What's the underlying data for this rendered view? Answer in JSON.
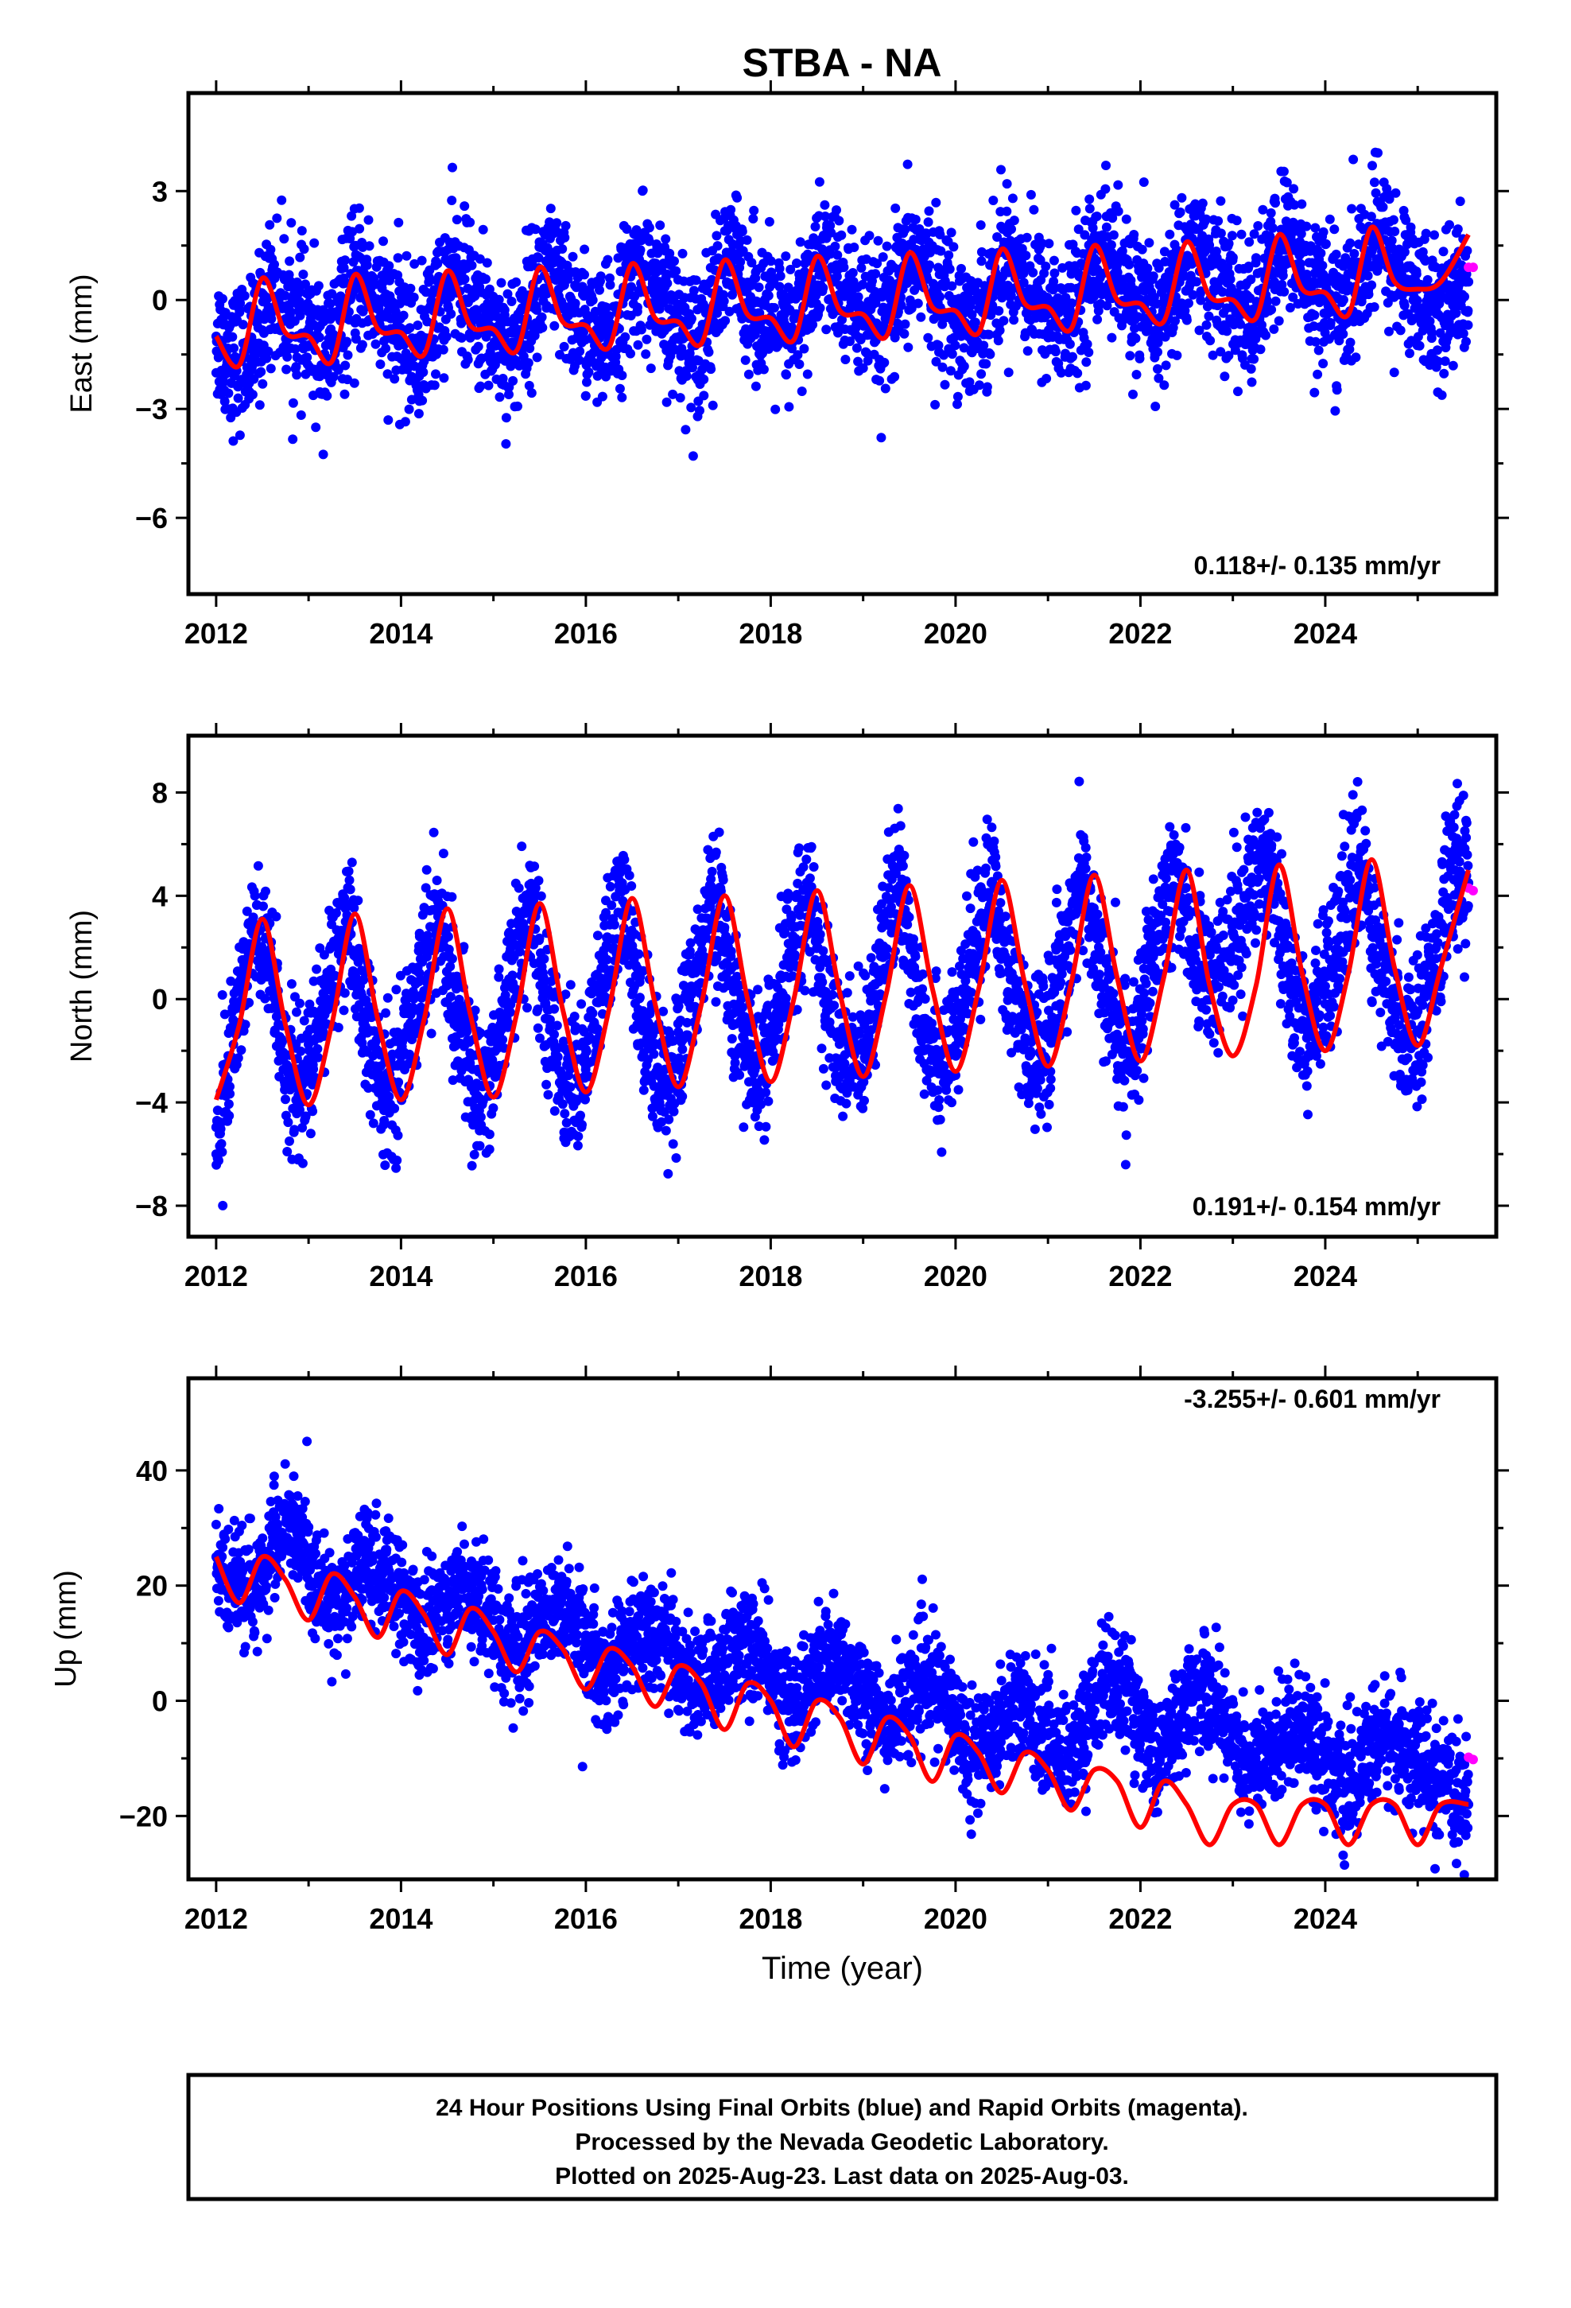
{
  "title": "STBA - NA",
  "footer": {
    "line1": "24 Hour Positions Using Final Orbits (blue) and Rapid Orbits (magenta).",
    "line2": "Processed by the Nevada Geodetic Laboratory.",
    "line3": "Plotted on 2025-Aug-23. Last data on 2025-Aug-03."
  },
  "colors": {
    "final_orbits": "#0000ff",
    "rapid_orbits": "#ff00ff",
    "model": "#ff0000"
  },
  "chart_data": [
    {
      "type": "scatter",
      "ylabel": "East (mm)",
      "xlabel": "",
      "rate_text": "0.118+/- 0.135 mm/yr",
      "xlim": [
        2011.7,
        2025.85
      ],
      "ylim": [
        -8.1,
        5.7
      ],
      "xticks": [
        2012,
        2014,
        2016,
        2018,
        2020,
        2022,
        2024
      ],
      "xtick_labels": [
        "2012",
        "2014",
        "2016",
        "2018",
        "2020",
        "2022",
        "2024"
      ],
      "yticks": [
        -6,
        -3,
        0,
        3
      ],
      "ytick_labels": [
        "−6",
        "−3",
        "0",
        "3"
      ],
      "series": [
        {
          "name": "Final Orbits",
          "color": "#0000ff",
          "x": [
            2012.0,
            2012.2,
            2012.4,
            2012.6,
            2012.8,
            2013.0,
            2013.2,
            2013.4,
            2013.6,
            2013.8,
            2014.0,
            2014.2,
            2014.4,
            2014.6,
            2014.8,
            2015.0,
            2015.2,
            2015.4,
            2015.6,
            2015.8,
            2016.0,
            2016.2,
            2016.4,
            2016.6,
            2016.8,
            2017.0,
            2017.2,
            2017.4,
            2017.6,
            2017.8,
            2018.0,
            2018.2,
            2018.4,
            2018.6,
            2018.8,
            2019.0,
            2019.2,
            2019.4,
            2019.6,
            2019.8,
            2020.0,
            2020.2,
            2020.4,
            2020.6,
            2020.8,
            2021.0,
            2021.2,
            2021.4,
            2021.6,
            2021.8,
            2022.0,
            2022.2,
            2022.4,
            2022.6,
            2022.8,
            2023.0,
            2023.2,
            2023.4,
            2023.6,
            2023.8,
            2024.0,
            2024.2,
            2024.4,
            2024.6,
            2024.8,
            2025.0,
            2025.2,
            2025.4,
            2025.55
          ],
          "y": [
            -1.0,
            -1.6,
            -1.4,
            0.4,
            -0.4,
            -0.9,
            -1.6,
            -0.2,
            0.6,
            -0.4,
            -0.9,
            -1.5,
            -0.1,
            0.8,
            -0.3,
            -0.8,
            -1.4,
            -0.1,
            0.9,
            -0.2,
            -0.7,
            -1.3,
            -0.1,
            1.0,
            -0.1,
            -0.6,
            -1.2,
            0.1,
            1.1,
            0.0,
            -0.5,
            -1.0,
            0.2,
            1.2,
            0.1,
            -0.4,
            -0.9,
            0.3,
            1.3,
            0.2,
            -0.3,
            -0.8,
            0.4,
            1.4,
            0.3,
            -0.2,
            -0.7,
            0.5,
            1.5,
            0.4,
            -0.1,
            -0.6,
            0.6,
            1.6,
            0.5,
            0.0,
            -0.5,
            0.7,
            1.8,
            0.6,
            0.2,
            -0.4,
            0.8,
            1.9,
            0.7,
            0.3,
            -0.3,
            0.2,
            0.5
          ]
        },
        {
          "name": "Rapid Orbits",
          "color": "#ff00ff",
          "x": [
            2025.55,
            2025.6
          ],
          "y": [
            0.9,
            0.9
          ]
        }
      ],
      "model": {
        "name": "Model",
        "color": "#ff0000",
        "x": [
          2012.0,
          2012.25,
          2012.5,
          2012.75,
          2013.0,
          2013.25,
          2013.5,
          2013.75,
          2014.0,
          2014.25,
          2014.5,
          2014.75,
          2015.0,
          2015.25,
          2015.5,
          2015.75,
          2016.0,
          2016.25,
          2016.5,
          2016.75,
          2017.0,
          2017.25,
          2017.5,
          2017.75,
          2018.0,
          2018.25,
          2018.5,
          2018.75,
          2019.0,
          2019.25,
          2019.5,
          2019.75,
          2020.0,
          2020.25,
          2020.5,
          2020.75,
          2021.0,
          2021.25,
          2021.5,
          2021.75,
          2022.0,
          2022.25,
          2022.5,
          2022.75,
          2023.0,
          2023.25,
          2023.5,
          2023.75,
          2024.0,
          2024.25,
          2024.5,
          2024.75,
          2025.0,
          2025.25,
          2025.55
        ],
        "y": [
          -1.0,
          -1.8,
          0.6,
          -0.9,
          -1.0,
          -1.7,
          0.7,
          -0.8,
          -0.9,
          -1.5,
          0.8,
          -0.7,
          -0.8,
          -1.4,
          0.9,
          -0.6,
          -0.7,
          -1.3,
          1.0,
          -0.5,
          -0.6,
          -1.2,
          1.1,
          -0.4,
          -0.5,
          -1.1,
          1.2,
          -0.3,
          -0.4,
          -1.0,
          1.3,
          -0.2,
          -0.3,
          -0.9,
          1.4,
          -0.1,
          -0.2,
          -0.8,
          1.5,
          0.0,
          -0.1,
          -0.6,
          1.6,
          0.1,
          0.0,
          -0.5,
          1.8,
          0.3,
          0.2,
          -0.4,
          2.0,
          0.5,
          0.3,
          0.5,
          1.8
        ]
      }
    },
    {
      "type": "scatter",
      "ylabel": "North (mm)",
      "xlabel": "",
      "rate_text": "0.191+/- 0.154 mm/yr",
      "xlim": [
        2011.7,
        2025.85
      ],
      "ylim": [
        -9.2,
        10.2
      ],
      "xticks": [
        2012,
        2014,
        2016,
        2018,
        2020,
        2022,
        2024
      ],
      "xtick_labels": [
        "2012",
        "2014",
        "2016",
        "2018",
        "2020",
        "2022",
        "2024"
      ],
      "yticks": [
        -8,
        -4,
        0,
        4,
        8
      ],
      "ytick_labels": [
        "−8",
        "−4",
        "0",
        "4",
        "8"
      ],
      "series": [
        {
          "name": "Final Orbits",
          "color": "#0000ff",
          "x": [
            2012.0,
            2012.2,
            2012.4,
            2012.6,
            2012.8,
            2013.0,
            2013.2,
            2013.4,
            2013.6,
            2013.8,
            2014.0,
            2014.2,
            2014.4,
            2014.6,
            2014.8,
            2015.0,
            2015.2,
            2015.4,
            2015.6,
            2015.8,
            2016.0,
            2016.2,
            2016.4,
            2016.6,
            2016.8,
            2017.0,
            2017.2,
            2017.4,
            2017.6,
            2017.8,
            2018.0,
            2018.2,
            2018.4,
            2018.6,
            2018.8,
            2019.0,
            2019.2,
            2019.4,
            2019.6,
            2019.8,
            2020.0,
            2020.2,
            2020.4,
            2020.6,
            2020.8,
            2021.0,
            2021.2,
            2021.4,
            2021.6,
            2021.8,
            2022.0,
            2022.2,
            2022.4,
            2022.6,
            2022.8,
            2023.0,
            2023.2,
            2023.4,
            2023.6,
            2023.8,
            2024.0,
            2024.2,
            2024.4,
            2024.6,
            2024.8,
            2025.0,
            2025.2,
            2025.4,
            2025.55
          ],
          "y": [
            -6.0,
            -1.0,
            2.5,
            1.0,
            -3.5,
            -3.0,
            0.5,
            3.0,
            -0.5,
            -3.8,
            -2.5,
            1.0,
            3.2,
            -0.5,
            -3.5,
            -2.8,
            1.5,
            3.5,
            -0.8,
            -3.4,
            -2.6,
            1.2,
            3.8,
            -0.5,
            -3.0,
            -2.5,
            1.5,
            4.0,
            -0.2,
            -2.8,
            -2.0,
            1.8,
            4.2,
            0.0,
            -2.5,
            -2.0,
            2.0,
            4.4,
            0.0,
            -2.4,
            -1.8,
            2.2,
            4.5,
            0.2,
            -2.2,
            -1.5,
            2.5,
            4.6,
            0.5,
            -2.0,
            -1.0,
            2.5,
            5.0,
            1.5,
            1.0,
            2.0,
            4.5,
            6.0,
            1.0,
            -1.5,
            0.5,
            3.5,
            5.2,
            1.0,
            -1.0,
            -1.2,
            2.0,
            5.0,
            4.5
          ]
        },
        {
          "name": "Rapid Orbits",
          "color": "#ff00ff",
          "x": [
            2025.55,
            2025.6
          ],
          "y": [
            4.3,
            4.2
          ]
        }
      ],
      "model": {
        "name": "Model",
        "color": "#ff0000",
        "x": [
          2012.0,
          2012.25,
          2012.5,
          2012.75,
          2013.0,
          2013.25,
          2013.5,
          2013.75,
          2014.0,
          2014.25,
          2014.5,
          2014.75,
          2015.0,
          2015.25,
          2015.5,
          2015.75,
          2016.0,
          2016.25,
          2016.5,
          2016.75,
          2017.0,
          2017.25,
          2017.5,
          2017.75,
          2018.0,
          2018.25,
          2018.5,
          2018.75,
          2019.0,
          2019.25,
          2019.5,
          2019.75,
          2020.0,
          2020.25,
          2020.5,
          2020.75,
          2021.0,
          2021.25,
          2021.5,
          2021.75,
          2022.0,
          2022.25,
          2022.5,
          2022.75,
          2023.0,
          2023.25,
          2023.5,
          2023.75,
          2024.0,
          2024.25,
          2024.5,
          2024.75,
          2025.0,
          2025.25,
          2025.55
        ],
        "y": [
          -3.9,
          -1.0,
          3.1,
          -1.0,
          -4.1,
          -1.0,
          3.3,
          -0.8,
          -3.9,
          -0.8,
          3.5,
          -0.6,
          -3.8,
          -0.6,
          3.7,
          -0.4,
          -3.6,
          -0.4,
          3.9,
          -0.2,
          -3.4,
          -0.2,
          4.0,
          0.0,
          -3.2,
          0.0,
          4.2,
          0.2,
          -3.0,
          0.2,
          4.4,
          0.4,
          -2.8,
          0.4,
          4.6,
          0.6,
          -2.6,
          0.6,
          4.8,
          0.8,
          -2.4,
          0.8,
          5.0,
          0.5,
          -2.2,
          0.5,
          5.2,
          1.0,
          -2.0,
          1.0,
          5.4,
          1.2,
          -1.8,
          1.2,
          5.0
        ]
      }
    },
    {
      "type": "scatter",
      "ylabel": "Up (mm)",
      "xlabel": "Time (year)",
      "rate_text": "-3.255+/- 0.601 mm/yr",
      "xlim": [
        2011.7,
        2025.85
      ],
      "ylim": [
        -31,
        56
      ],
      "xticks": [
        2012,
        2014,
        2016,
        2018,
        2020,
        2022,
        2024
      ],
      "xtick_labels": [
        "2012",
        "2014",
        "2016",
        "2018",
        "2020",
        "2022",
        "2024"
      ],
      "yticks": [
        -20,
        0,
        20,
        40
      ],
      "ytick_labels": [
        "−20",
        "0",
        "20",
        "40"
      ],
      "series": [
        {
          "name": "Final Orbits",
          "color": "#0000ff",
          "x": [
            2012.0,
            2012.2,
            2012.4,
            2012.6,
            2012.8,
            2013.0,
            2013.2,
            2013.4,
            2013.6,
            2013.8,
            2014.0,
            2014.2,
            2014.4,
            2014.6,
            2014.8,
            2015.0,
            2015.2,
            2015.4,
            2015.6,
            2015.8,
            2016.0,
            2016.2,
            2016.4,
            2016.6,
            2016.8,
            2017.0,
            2017.2,
            2017.4,
            2017.6,
            2017.8,
            2018.0,
            2018.2,
            2018.4,
            2018.6,
            2018.8,
            2019.0,
            2019.2,
            2019.4,
            2019.6,
            2019.8,
            2020.0,
            2020.2,
            2020.4,
            2020.6,
            2020.8,
            2021.0,
            2021.2,
            2021.4,
            2021.6,
            2021.8,
            2022.0,
            2022.2,
            2022.4,
            2022.6,
            2022.8,
            2023.0,
            2023.2,
            2023.4,
            2023.6,
            2023.8,
            2024.0,
            2024.2,
            2024.4,
            2024.6,
            2024.8,
            2025.0,
            2025.2,
            2025.4,
            2025.55
          ],
          "y": [
            25,
            20,
            18,
            27,
            30,
            24,
            16,
            18,
            24,
            22,
            18,
            12,
            16,
            20,
            19,
            14,
            8,
            12,
            17,
            14,
            11,
            5,
            8,
            13,
            11,
            7,
            2,
            5,
            10,
            9,
            5,
            -1,
            2,
            7,
            6,
            2,
            -4,
            -2,
            3,
            2,
            -3,
            -10,
            -6,
            0,
            -2,
            -6,
            -10,
            -5,
            4,
            2,
            -4,
            -10,
            -4,
            2,
            0,
            -6,
            -12,
            -10,
            -4,
            -5,
            -10,
            -16,
            -12,
            -6,
            -8,
            -10,
            -15,
            -16,
            -18
          ]
        },
        {
          "name": "Rapid Orbits",
          "color": "#ff00ff",
          "x": [
            2025.55,
            2025.6
          ],
          "y": [
            -9.8,
            -10.2
          ]
        }
      ],
      "model": {
        "name": "Model",
        "color": "#ff0000",
        "x": [
          2012.0,
          2012.25,
          2012.5,
          2012.75,
          2013.0,
          2013.25,
          2013.5,
          2013.75,
          2014.0,
          2014.25,
          2014.5,
          2014.75,
          2015.0,
          2015.25,
          2015.5,
          2015.75,
          2016.0,
          2016.25,
          2016.5,
          2016.75,
          2017.0,
          2017.25,
          2017.5,
          2017.75,
          2018.0,
          2018.25,
          2018.5,
          2018.75,
          2019.0,
          2019.25,
          2019.5,
          2019.75,
          2020.0,
          2020.25,
          2020.5,
          2020.75,
          2021.0,
          2021.25,
          2021.5,
          2021.75,
          2022.0,
          2022.25,
          2022.5,
          2022.75,
          2023.0,
          2023.25,
          2023.5,
          2023.75,
          2024.0,
          2024.25,
          2024.5,
          2024.75,
          2025.0,
          2025.25,
          2025.55
        ],
        "y": [
          25,
          17,
          25,
          21,
          14,
          22,
          18,
          11,
          19,
          15,
          8,
          16,
          12,
          5,
          12,
          9,
          2,
          9,
          6,
          -1,
          6,
          3,
          -5,
          3,
          0,
          -8,
          0,
          -3,
          -11,
          -3,
          -6,
          -14,
          -6,
          -9,
          -16,
          -9,
          -12,
          -19,
          -12,
          -14,
          -22,
          -14,
          -18,
          -25,
          -18,
          -18,
          -25,
          -18,
          -18,
          -25,
          -18,
          -18,
          -25,
          -18,
          -18
        ]
      }
    }
  ]
}
